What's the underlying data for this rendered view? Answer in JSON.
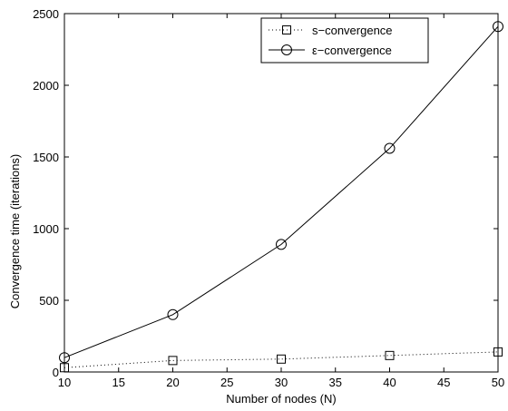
{
  "chart_data": {
    "type": "line",
    "title": "",
    "xlabel": "Number of nodes (N)",
    "ylabel": "Convergence time (iterations)",
    "xlim": [
      10,
      50
    ],
    "ylim": [
      0,
      2500
    ],
    "xticks": [
      10,
      15,
      20,
      25,
      30,
      35,
      40,
      45,
      50
    ],
    "yticks": [
      0,
      500,
      1000,
      1500,
      2000,
      2500
    ],
    "x": [
      10,
      20,
      30,
      40,
      50
    ],
    "grid": false,
    "legend_position": "top-right",
    "series": [
      {
        "name": "s−convergence",
        "values": [
          30,
          80,
          90,
          115,
          140
        ],
        "marker": "square",
        "line_style": "dotted",
        "color": "#000000"
      },
      {
        "name": "ε−convergence",
        "values": [
          100,
          400,
          890,
          1560,
          2410
        ],
        "marker": "circle",
        "line_style": "solid",
        "color": "#000000"
      }
    ]
  }
}
